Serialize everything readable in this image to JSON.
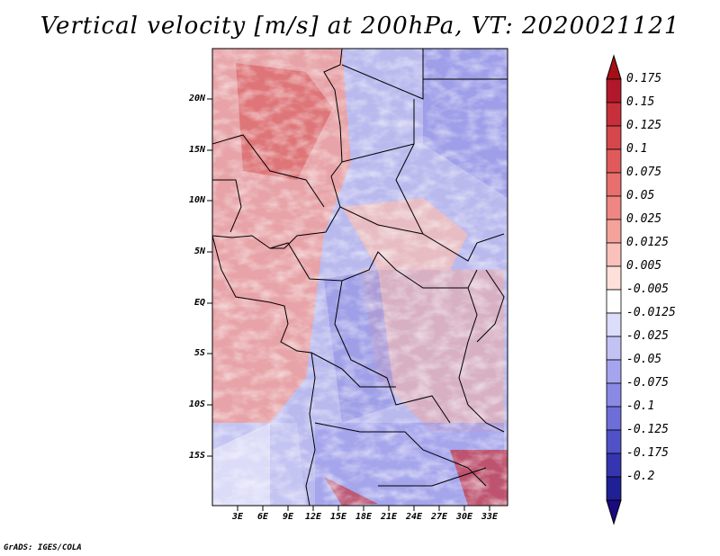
{
  "title": "Vertical velocity [m/s] at 200hPa, VT: 2020021121",
  "credit": "GrADS: IGES/COLA",
  "lat_ticks": [
    "20N",
    "15N",
    "10N",
    "5N",
    "EQ",
    "5S",
    "10S",
    "15S"
  ],
  "lon_ticks": [
    "3E",
    "6E",
    "9E",
    "12E",
    "15E",
    "18E",
    "21E",
    "24E",
    "27E",
    "30E",
    "33E"
  ],
  "colorbar": {
    "labels": [
      "0.175",
      "0.15",
      "0.125",
      "0.1",
      "0.075",
      "0.05",
      "0.025",
      "0.0125",
      "0.005",
      "-0.005",
      "-0.0125",
      "-0.025",
      "-0.05",
      "-0.075",
      "-0.1",
      "-0.125",
      "-0.175",
      "-0.2"
    ],
    "colors": [
      "#b2182b",
      "#c7303a",
      "#d6474c",
      "#e05a5b",
      "#e86f6d",
      "#ef8683",
      "#f5a29b",
      "#f9c1b9",
      "#fde0da",
      "#ffffff",
      "#dcdcfb",
      "#c2c2f5",
      "#a5a5ef",
      "#8a8ae6",
      "#6e6ed9",
      "#5151c8",
      "#3535b0",
      "#1f1f96"
    ],
    "top_color": "#a50f15",
    "bottom_color": "#1a0a80"
  }
}
